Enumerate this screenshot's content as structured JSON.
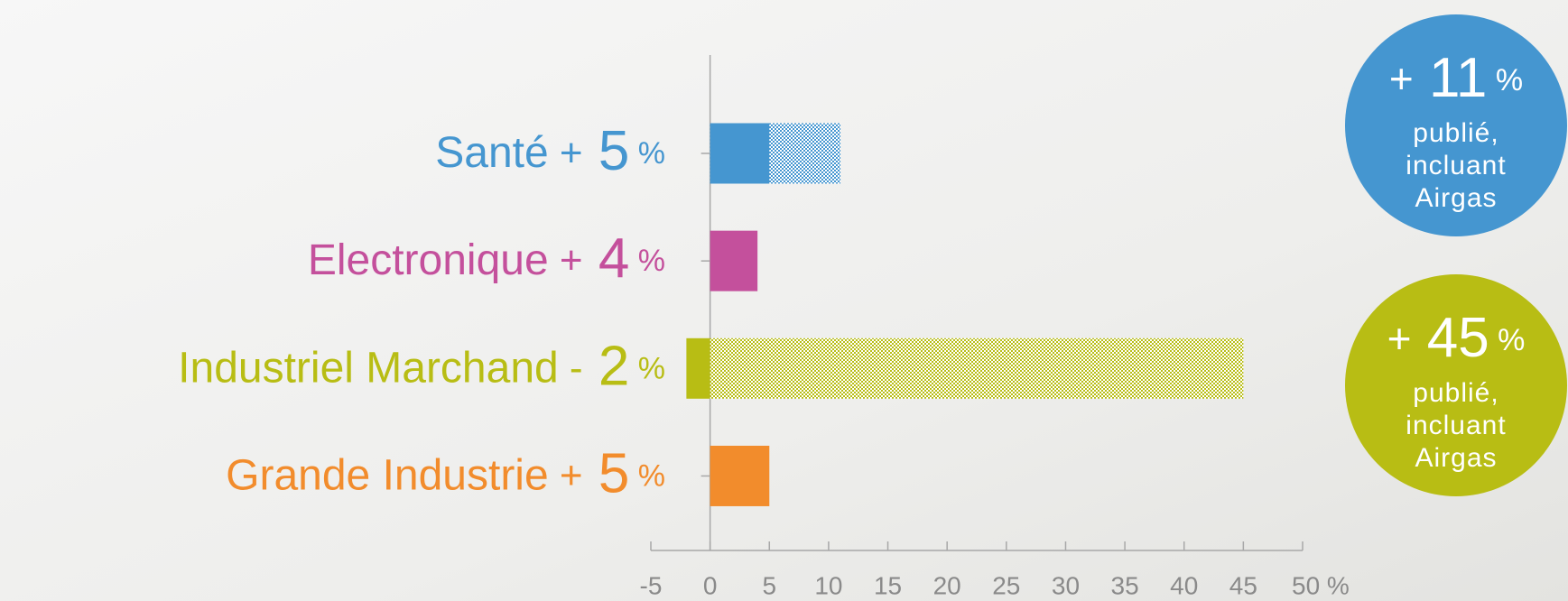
{
  "chart_data": {
    "type": "bar",
    "categories": [
      "Santé",
      "Electronique",
      "Industriel Marchand",
      "Grande Industrie"
    ],
    "values": [
      5,
      4,
      -2,
      5
    ],
    "value_labels": [
      "+ 5 %",
      "+ 4 %",
      "- 2 %",
      "+ 5 %"
    ],
    "published_values": [
      11,
      null,
      45,
      null
    ],
    "colors": [
      "#4596d0",
      "#c4509c",
      "#b8bd14",
      "#f28c2c"
    ],
    "xlim": [
      -5,
      50
    ],
    "xticks": [
      -5,
      0,
      5,
      10,
      15,
      20,
      25,
      30,
      35,
      40,
      45,
      {
        "value": 50,
        "label": "50 %"
      }
    ],
    "annotations": [
      {
        "text": "+ 11 %",
        "lines": [
          "publié,",
          "incluant",
          "Airgas"
        ],
        "color": "#4596d0"
      },
      {
        "text": "+ 45 %",
        "lines": [
          "publié,",
          "incluant",
          "Airgas"
        ],
        "color": "#b8bd14"
      }
    ]
  }
}
